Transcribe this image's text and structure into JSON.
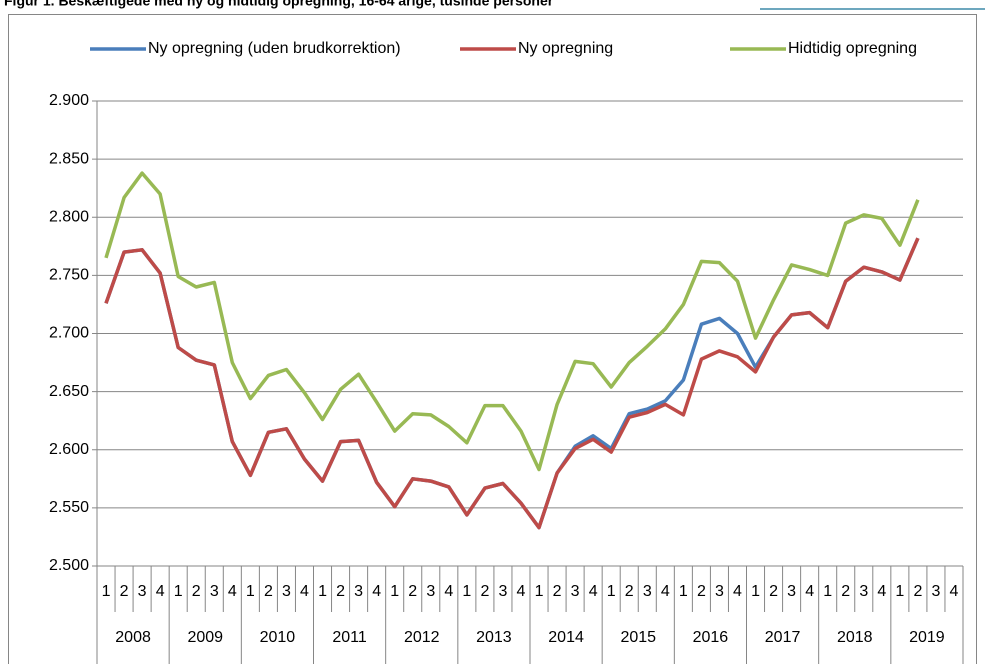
{
  "chart_data": {
    "type": "line",
    "title": "Figur 1. Beskæftigede med ny og hidtidig opregning, 16-64 årige, tusinde personer",
    "categories": [
      "1",
      "2",
      "3",
      "4",
      "1",
      "2",
      "3",
      "4",
      "1",
      "2",
      "3",
      "4",
      "1",
      "2",
      "3",
      "4",
      "1",
      "2",
      "3",
      "4",
      "1",
      "2",
      "3",
      "4",
      "1",
      "2",
      "3",
      "4",
      "1",
      "2",
      "3",
      "4",
      "1",
      "2",
      "3",
      "4",
      "1",
      "2",
      "3",
      "4",
      "1",
      "2",
      "3",
      "4",
      "1",
      "2",
      "3",
      "4"
    ],
    "years": [
      "2008",
      "2009",
      "2010",
      "2011",
      "2012",
      "2013",
      "2014",
      "2015",
      "2016",
      "2017",
      "2018",
      "2019"
    ],
    "series": [
      {
        "name": "Ny opregning (uden brudkorrektion)",
        "color": "#4a7ebb",
        "values": [
          2726,
          2770,
          2772,
          2752,
          2688,
          2677,
          2673,
          2607,
          2578,
          2615,
          2618,
          2592,
          2573,
          2607,
          2608,
          2572,
          2551,
          2575,
          2573,
          2568,
          2544,
          2567,
          2571,
          2554,
          2533,
          2580,
          2603,
          2612,
          2601,
          2631,
          2635,
          2642,
          2660,
          2708,
          2713,
          2700,
          2671,
          2697,
          2716,
          2718,
          2705,
          2745,
          2757,
          2753,
          2746,
          2782,
          null,
          null
        ]
      },
      {
        "name": "Ny opregning",
        "color": "#be4b48",
        "values": [
          2726,
          2770,
          2772,
          2752,
          2688,
          2677,
          2673,
          2607,
          2578,
          2615,
          2618,
          2592,
          2573,
          2607,
          2608,
          2572,
          2551,
          2575,
          2573,
          2568,
          2544,
          2567,
          2571,
          2554,
          2533,
          2580,
          2601,
          2609,
          2598,
          2628,
          2632,
          2639,
          2630,
          2678,
          2685,
          2680,
          2667,
          2697,
          2716,
          2718,
          2705,
          2745,
          2757,
          2753,
          2746,
          2782,
          null,
          null
        ]
      },
      {
        "name": "Hidtidig opregning",
        "color": "#98b954",
        "values": [
          2765,
          2817,
          2838,
          2820,
          2749,
          2740,
          2744,
          2675,
          2644,
          2664,
          2669,
          2649,
          2626,
          2652,
          2665,
          2641,
          2616,
          2631,
          2630,
          2620,
          2606,
          2638,
          2638,
          2616,
          2583,
          2639,
          2676,
          2674,
          2654,
          2675,
          2689,
          2704,
          2725,
          2762,
          2761,
          2745,
          2696,
          2729,
          2759,
          2755,
          2750,
          2795,
          2802,
          2799,
          2776,
          2815,
          null,
          null
        ]
      }
    ],
    "ylim": [
      2500,
      2900
    ],
    "yticks": [
      {
        "value": 2500,
        "label": "2.500"
      },
      {
        "value": 2550,
        "label": "2.550"
      },
      {
        "value": 2600,
        "label": "2.600"
      },
      {
        "value": 2650,
        "label": "2.650"
      },
      {
        "value": 2700,
        "label": "2.700"
      },
      {
        "value": 2750,
        "label": "2.750"
      },
      {
        "value": 2800,
        "label": "2.800"
      },
      {
        "value": 2850,
        "label": "2.850"
      },
      {
        "value": 2900,
        "label": "2.900"
      }
    ],
    "grid": true,
    "legend": "top"
  }
}
